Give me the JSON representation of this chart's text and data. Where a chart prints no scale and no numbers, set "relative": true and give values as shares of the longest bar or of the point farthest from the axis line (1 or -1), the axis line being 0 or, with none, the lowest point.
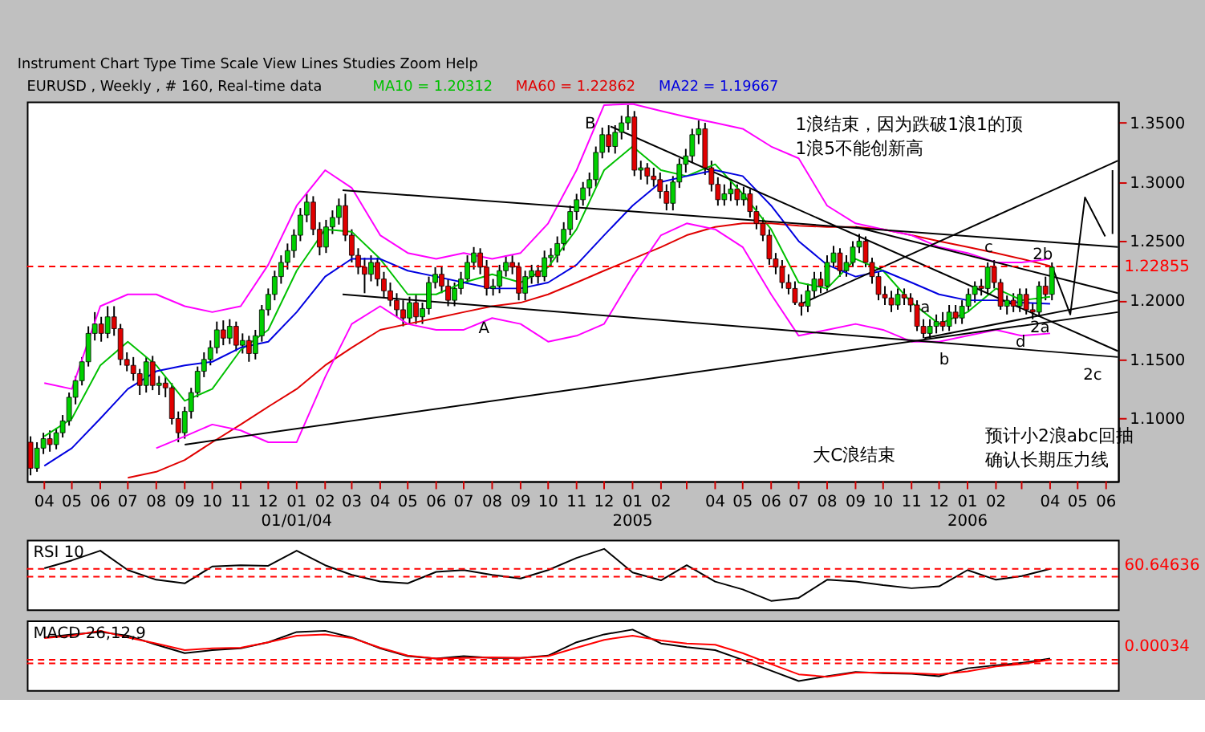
{
  "chart_data": [
    {
      "type": "candlestick",
      "title": "EURUSD , Weekly , # 160, Real-time data",
      "legend": "top",
      "x": [
        "2003-03-17",
        "2003-03-24",
        "2003-03-31",
        "2003-04-07",
        "2003-04-14",
        "2003-04-21",
        "2003-04-28",
        "2003-05-05",
        "2003-05-12",
        "2003-05-19",
        "2003-05-26",
        "2003-06-02",
        "2003-06-09",
        "2003-06-16",
        "2003-06-23",
        "2003-06-30",
        "2003-07-07",
        "2003-07-14",
        "2003-07-21",
        "2003-07-28",
        "2003-08-04",
        "2003-08-11",
        "2003-08-18",
        "2003-08-25",
        "2003-09-01",
        "2003-09-08",
        "2003-09-15",
        "2003-09-22",
        "2003-09-29",
        "2003-10-06",
        "2003-10-13",
        "2003-10-20",
        "2003-10-27",
        "2003-11-03",
        "2003-11-10",
        "2003-11-17",
        "2003-11-24",
        "2003-12-01",
        "2003-12-08",
        "2003-12-15",
        "2003-12-22",
        "2003-12-29",
        "2004-01-05",
        "2004-01-12",
        "2004-01-19",
        "2004-01-26",
        "2004-02-02",
        "2004-02-09",
        "2004-02-16",
        "2004-02-23",
        "2004-03-01",
        "2004-03-08",
        "2004-03-15",
        "2004-03-22",
        "2004-03-29",
        "2004-04-05",
        "2004-04-12",
        "2004-04-19",
        "2004-04-26",
        "2004-05-03",
        "2004-05-10",
        "2004-05-17",
        "2004-05-24",
        "2004-05-31",
        "2004-06-07",
        "2004-06-14",
        "2004-06-21",
        "2004-06-28",
        "2004-07-05",
        "2004-07-12",
        "2004-07-19",
        "2004-07-26",
        "2004-08-02",
        "2004-08-09",
        "2004-08-16",
        "2004-08-23",
        "2004-08-30",
        "2004-09-06",
        "2004-09-13",
        "2004-09-20",
        "2004-09-27",
        "2004-10-04",
        "2004-10-11",
        "2004-10-18",
        "2004-10-25",
        "2004-11-01",
        "2004-11-08",
        "2004-11-15",
        "2004-11-22",
        "2004-11-29",
        "2004-12-06",
        "2004-12-13",
        "2004-12-20",
        "2004-12-27",
        "2005-01-03",
        "2005-01-10",
        "2005-01-17",
        "2005-01-24",
        "2005-01-31",
        "2005-02-07",
        "2005-02-14",
        "2005-02-21",
        "2005-02-28",
        "2005-03-07",
        "2005-03-14",
        "2005-03-21",
        "2005-03-28",
        "2005-04-04",
        "2005-04-11",
        "2005-04-18",
        "2005-04-25",
        "2005-05-02",
        "2005-05-09",
        "2005-05-16",
        "2005-05-23",
        "2005-05-30",
        "2005-06-06",
        "2005-06-13",
        "2005-06-20",
        "2005-06-27",
        "2005-07-04",
        "2005-07-11",
        "2005-07-18",
        "2005-07-25",
        "2005-08-01",
        "2005-08-08",
        "2005-08-15",
        "2005-08-22",
        "2005-08-29",
        "2005-09-05",
        "2005-09-12",
        "2005-09-19",
        "2005-09-26",
        "2005-10-03",
        "2005-10-10",
        "2005-10-17",
        "2005-10-24",
        "2005-10-31",
        "2005-11-07",
        "2005-11-14",
        "2005-11-21",
        "2005-11-28",
        "2005-12-05",
        "2005-12-12",
        "2005-12-19",
        "2005-12-26",
        "2006-01-02",
        "2006-01-09",
        "2006-01-16",
        "2006-01-23",
        "2006-01-30",
        "2006-02-06",
        "2006-02-13",
        "2006-02-20",
        "2006-02-27",
        "2006-03-06",
        "2006-03-13",
        "2006-03-20",
        "2006-03-27",
        "2006-04-03"
      ],
      "ohlc": [
        [
          1.08,
          1.085,
          1.052,
          1.058
        ],
        [
          1.058,
          1.08,
          1.055,
          1.075
        ],
        [
          1.075,
          1.088,
          1.07,
          1.083
        ],
        [
          1.083,
          1.09,
          1.072,
          1.078
        ],
        [
          1.078,
          1.092,
          1.074,
          1.088
        ],
        [
          1.088,
          1.103,
          1.084,
          1.098
        ],
        [
          1.098,
          1.122,
          1.094,
          1.118
        ],
        [
          1.118,
          1.136,
          1.112,
          1.132
        ],
        [
          1.132,
          1.152,
          1.128,
          1.148
        ],
        [
          1.148,
          1.178,
          1.144,
          1.172
        ],
        [
          1.172,
          1.19,
          1.166,
          1.18
        ],
        [
          1.18,
          1.186,
          1.165,
          1.172
        ],
        [
          1.172,
          1.195,
          1.168,
          1.186
        ],
        [
          1.186,
          1.195,
          1.17,
          1.176
        ],
        [
          1.176,
          1.18,
          1.145,
          1.15
        ],
        [
          1.15,
          1.156,
          1.14,
          1.145
        ],
        [
          1.145,
          1.152,
          1.132,
          1.138
        ],
        [
          1.138,
          1.142,
          1.12,
          1.128
        ],
        [
          1.128,
          1.152,
          1.122,
          1.148
        ],
        [
          1.148,
          1.153,
          1.124,
          1.128
        ],
        [
          1.128,
          1.136,
          1.12,
          1.13
        ],
        [
          1.13,
          1.135,
          1.118,
          1.126
        ],
        [
          1.126,
          1.13,
          1.095,
          1.1
        ],
        [
          1.1,
          1.106,
          1.08,
          1.088
        ],
        [
          1.088,
          1.11,
          1.083,
          1.106
        ],
        [
          1.106,
          1.126,
          1.1,
          1.122
        ],
        [
          1.122,
          1.144,
          1.118,
          1.14
        ],
        [
          1.14,
          1.156,
          1.135,
          1.15
        ],
        [
          1.15,
          1.166,
          1.145,
          1.16
        ],
        [
          1.16,
          1.182,
          1.155,
          1.175
        ],
        [
          1.175,
          1.183,
          1.162,
          1.168
        ],
        [
          1.168,
          1.184,
          1.163,
          1.178
        ],
        [
          1.178,
          1.182,
          1.157,
          1.162
        ],
        [
          1.162,
          1.172,
          1.155,
          1.166
        ],
        [
          1.166,
          1.17,
          1.148,
          1.155
        ],
        [
          1.155,
          1.175,
          1.15,
          1.17
        ],
        [
          1.17,
          1.196,
          1.165,
          1.192
        ],
        [
          1.192,
          1.21,
          1.187,
          1.205
        ],
        [
          1.205,
          1.225,
          1.2,
          1.22
        ],
        [
          1.22,
          1.238,
          1.214,
          1.232
        ],
        [
          1.232,
          1.248,
          1.226,
          1.242
        ],
        [
          1.242,
          1.26,
          1.236,
          1.255
        ],
        [
          1.255,
          1.278,
          1.25,
          1.272
        ],
        [
          1.272,
          1.29,
          1.266,
          1.283
        ],
        [
          1.283,
          1.288,
          1.255,
          1.26
        ],
        [
          1.26,
          1.266,
          1.238,
          1.245
        ],
        [
          1.245,
          1.268,
          1.24,
          1.262
        ],
        [
          1.262,
          1.276,
          1.256,
          1.27
        ],
        [
          1.27,
          1.286,
          1.264,
          1.28
        ],
        [
          1.28,
          1.29,
          1.25,
          1.255
        ],
        [
          1.255,
          1.26,
          1.232,
          1.238
        ],
        [
          1.238,
          1.244,
          1.222,
          1.228
        ],
        [
          1.228,
          1.236,
          1.206,
          1.222
        ],
        [
          1.222,
          1.238,
          1.216,
          1.232
        ],
        [
          1.232,
          1.236,
          1.212,
          1.218
        ],
        [
          1.218,
          1.224,
          1.202,
          1.208
        ],
        [
          1.208,
          1.215,
          1.195,
          1.2
        ],
        [
          1.2,
          1.206,
          1.186,
          1.192
        ],
        [
          1.192,
          1.2,
          1.178,
          1.185
        ],
        [
          1.185,
          1.203,
          1.18,
          1.198
        ],
        [
          1.198,
          1.205,
          1.18,
          1.186
        ],
        [
          1.186,
          1.198,
          1.18,
          1.193
        ],
        [
          1.193,
          1.22,
          1.188,
          1.215
        ],
        [
          1.215,
          1.228,
          1.21,
          1.222
        ],
        [
          1.222,
          1.228,
          1.206,
          1.212
        ],
        [
          1.212,
          1.218,
          1.195,
          1.2
        ],
        [
          1.2,
          1.215,
          1.195,
          1.21
        ],
        [
          1.21,
          1.224,
          1.205,
          1.218
        ],
        [
          1.218,
          1.238,
          1.214,
          1.232
        ],
        [
          1.232,
          1.245,
          1.226,
          1.24
        ],
        [
          1.24,
          1.244,
          1.222,
          1.228
        ],
        [
          1.228,
          1.234,
          1.204,
          1.21
        ],
        [
          1.21,
          1.218,
          1.204,
          1.212
        ],
        [
          1.212,
          1.23,
          1.206,
          1.225
        ],
        [
          1.225,
          1.238,
          1.22,
          1.232
        ],
        [
          1.232,
          1.238,
          1.222,
          1.228
        ],
        [
          1.228,
          1.232,
          1.2,
          1.206
        ],
        [
          1.206,
          1.225,
          1.2,
          1.22
        ],
        [
          1.22,
          1.23,
          1.214,
          1.225
        ],
        [
          1.225,
          1.23,
          1.214,
          1.22
        ],
        [
          1.22,
          1.242,
          1.216,
          1.236
        ],
        [
          1.236,
          1.244,
          1.228,
          1.238
        ],
        [
          1.238,
          1.254,
          1.232,
          1.248
        ],
        [
          1.248,
          1.266,
          1.242,
          1.26
        ],
        [
          1.26,
          1.28,
          1.255,
          1.275
        ],
        [
          1.275,
          1.29,
          1.268,
          1.285
        ],
        [
          1.285,
          1.3,
          1.28,
          1.295
        ],
        [
          1.295,
          1.308,
          1.288,
          1.302
        ],
        [
          1.302,
          1.33,
          1.296,
          1.325
        ],
        [
          1.325,
          1.346,
          1.32,
          1.34
        ],
        [
          1.34,
          1.348,
          1.325,
          1.33
        ],
        [
          1.33,
          1.348,
          1.324,
          1.342
        ],
        [
          1.342,
          1.356,
          1.336,
          1.35
        ],
        [
          1.35,
          1.365,
          1.344,
          1.355
        ],
        [
          1.355,
          1.36,
          1.305,
          1.31
        ],
        [
          1.31,
          1.318,
          1.302,
          1.312
        ],
        [
          1.312,
          1.316,
          1.298,
          1.305
        ],
        [
          1.305,
          1.312,
          1.296,
          1.302
        ],
        [
          1.302,
          1.308,
          1.286,
          1.292
        ],
        [
          1.292,
          1.298,
          1.276,
          1.282
        ],
        [
          1.282,
          1.305,
          1.276,
          1.3
        ],
        [
          1.3,
          1.32,
          1.295,
          1.315
        ],
        [
          1.315,
          1.328,
          1.308,
          1.322
        ],
        [
          1.322,
          1.345,
          1.316,
          1.34
        ],
        [
          1.34,
          1.352,
          1.332,
          1.345
        ],
        [
          1.345,
          1.35,
          1.306,
          1.312
        ],
        [
          1.312,
          1.318,
          1.292,
          1.298
        ],
        [
          1.298,
          1.304,
          1.28,
          1.285
        ],
        [
          1.285,
          1.298,
          1.28,
          1.29
        ],
        [
          1.29,
          1.302,
          1.284,
          1.294
        ],
        [
          1.294,
          1.298,
          1.28,
          1.285
        ],
        [
          1.285,
          1.296,
          1.28,
          1.29
        ],
        [
          1.29,
          1.294,
          1.27,
          1.275
        ],
        [
          1.275,
          1.28,
          1.26,
          1.265
        ],
        [
          1.265,
          1.27,
          1.25,
          1.255
        ],
        [
          1.255,
          1.26,
          1.23,
          1.235
        ],
        [
          1.235,
          1.24,
          1.222,
          1.228
        ],
        [
          1.228,
          1.234,
          1.21,
          1.215
        ],
        [
          1.215,
          1.222,
          1.205,
          1.21
        ],
        [
          1.21,
          1.216,
          1.196,
          1.198
        ],
        [
          1.198,
          1.205,
          1.187,
          1.195
        ],
        [
          1.195,
          1.214,
          1.19,
          1.208
        ],
        [
          1.208,
          1.224,
          1.202,
          1.218
        ],
        [
          1.218,
          1.224,
          1.206,
          1.212
        ],
        [
          1.212,
          1.238,
          1.208,
          1.232
        ],
        [
          1.232,
          1.246,
          1.228,
          1.24
        ],
        [
          1.24,
          1.244,
          1.22,
          1.225
        ],
        [
          1.225,
          1.238,
          1.22,
          1.232
        ],
        [
          1.232,
          1.25,
          1.228,
          1.245
        ],
        [
          1.245,
          1.256,
          1.24,
          1.25
        ],
        [
          1.25,
          1.254,
          1.228,
          1.232
        ],
        [
          1.232,
          1.236,
          1.214,
          1.22
        ],
        [
          1.22,
          1.224,
          1.2,
          1.205
        ],
        [
          1.205,
          1.212,
          1.196,
          1.202
        ],
        [
          1.202,
          1.208,
          1.19,
          1.196
        ],
        [
          1.196,
          1.21,
          1.192,
          1.205
        ],
        [
          1.205,
          1.21,
          1.196,
          1.202
        ],
        [
          1.202,
          1.206,
          1.19,
          1.196
        ],
        [
          1.196,
          1.2,
          1.174,
          1.178
        ],
        [
          1.178,
          1.184,
          1.168,
          1.172
        ],
        [
          1.172,
          1.184,
          1.168,
          1.178
        ],
        [
          1.178,
          1.188,
          1.172,
          1.182
        ],
        [
          1.182,
          1.19,
          1.174,
          1.178
        ],
        [
          1.178,
          1.196,
          1.174,
          1.19
        ],
        [
          1.19,
          1.196,
          1.18,
          1.185
        ],
        [
          1.185,
          1.2,
          1.18,
          1.195
        ],
        [
          1.195,
          1.21,
          1.19,
          1.205
        ],
        [
          1.205,
          1.216,
          1.198,
          1.212
        ],
        [
          1.212,
          1.218,
          1.204,
          1.21
        ],
        [
          1.21,
          1.232,
          1.205,
          1.228
        ],
        [
          1.228,
          1.234,
          1.21,
          1.215
        ],
        [
          1.215,
          1.218,
          1.192,
          1.195
        ],
        [
          1.195,
          1.204,
          1.188,
          1.2
        ],
        [
          1.2,
          1.206,
          1.19,
          1.195
        ],
        [
          1.195,
          1.21,
          1.19,
          1.205
        ],
        [
          1.205,
          1.21,
          1.188,
          1.192
        ],
        [
          1.192,
          1.198,
          1.184,
          1.19
        ],
        [
          1.19,
          1.216,
          1.186,
          1.212
        ],
        [
          1.212,
          1.22,
          1.2,
          1.205
        ],
        [
          1.205,
          1.232,
          1.2,
          1.228
        ]
      ],
      "series": [
        {
          "type": "line",
          "name": "MA10 = 1.20312",
          "color": "#00c000",
          "x": [
            "2003-04-01",
            "2003-05-01",
            "2003-06-01",
            "2003-07-01",
            "2003-08-01",
            "2003-09-01",
            "2003-10-01",
            "2003-11-01",
            "2003-12-01",
            "2004-01-01",
            "2004-02-01",
            "2004-03-01",
            "2004-04-01",
            "2004-05-01",
            "2004-06-01",
            "2004-07-01",
            "2004-08-01",
            "2004-09-01",
            "2004-10-01",
            "2004-11-01",
            "2004-12-01",
            "2005-01-01",
            "2005-02-01",
            "2005-03-01",
            "2005-04-01",
            "2005-05-01",
            "2005-06-01",
            "2005-07-01",
            "2005-08-01",
            "2005-09-01",
            "2005-10-01",
            "2005-11-01",
            "2005-12-01",
            "2006-01-01",
            "2006-02-01",
            "2006-03-01",
            "2006-04-01"
          ],
          "values": [
            1.085,
            1.1,
            1.145,
            1.165,
            1.145,
            1.115,
            1.125,
            1.158,
            1.175,
            1.225,
            1.26,
            1.258,
            1.235,
            1.205,
            1.205,
            1.215,
            1.222,
            1.215,
            1.228,
            1.26,
            1.31,
            1.33,
            1.31,
            1.305,
            1.315,
            1.29,
            1.26,
            1.215,
            1.21,
            1.235,
            1.225,
            1.198,
            1.18,
            1.19,
            1.21,
            1.2,
            1.203
          ]
        },
        {
          "type": "line",
          "name": "MA60 = 1.22862",
          "color": "#e00000",
          "x": [
            "2003-07-01",
            "2003-08-01",
            "2003-09-01",
            "2003-10-01",
            "2003-11-01",
            "2003-12-01",
            "2004-01-01",
            "2004-02-01",
            "2004-03-01",
            "2004-04-01",
            "2004-05-01",
            "2004-06-01",
            "2004-07-01",
            "2004-08-01",
            "2004-09-01",
            "2004-10-01",
            "2004-11-01",
            "2004-12-01",
            "2005-01-01",
            "2005-02-01",
            "2005-03-01",
            "2005-04-01",
            "2005-05-01",
            "2005-06-01",
            "2005-07-01",
            "2005-08-01",
            "2005-09-01",
            "2005-10-01",
            "2005-11-01",
            "2005-12-01",
            "2006-01-01",
            "2006-02-01",
            "2006-03-01",
            "2006-04-01"
          ],
          "values": [
            1.05,
            1.055,
            1.065,
            1.08,
            1.095,
            1.11,
            1.125,
            1.145,
            1.16,
            1.175,
            1.18,
            1.185,
            1.19,
            1.195,
            1.198,
            1.205,
            1.215,
            1.225,
            1.235,
            1.245,
            1.255,
            1.262,
            1.265,
            1.265,
            1.263,
            1.262,
            1.262,
            1.26,
            1.255,
            1.25,
            1.245,
            1.24,
            1.235,
            1.229
          ]
        },
        {
          "type": "line",
          "name": "MA22 = 1.19667",
          "color": "#0000e0",
          "x": [
            "2003-04-01",
            "2003-05-01",
            "2003-06-01",
            "2003-07-01",
            "2003-08-01",
            "2003-09-01",
            "2003-10-01",
            "2003-11-01",
            "2003-12-01",
            "2004-01-01",
            "2004-02-01",
            "2004-03-01",
            "2004-04-01",
            "2004-05-01",
            "2004-06-01",
            "2004-07-01",
            "2004-08-01",
            "2004-09-01",
            "2004-10-01",
            "2004-11-01",
            "2004-12-01",
            "2005-01-01",
            "2005-02-01",
            "2005-03-01",
            "2005-04-01",
            "2005-05-01",
            "2005-06-01",
            "2005-07-01",
            "2005-08-01",
            "2005-09-01",
            "2005-10-01",
            "2005-11-01",
            "2005-12-01",
            "2006-01-01",
            "2006-02-01",
            "2006-03-01",
            "2006-04-01"
          ],
          "values": [
            1.06,
            1.075,
            1.1,
            1.125,
            1.14,
            1.145,
            1.148,
            1.16,
            1.165,
            1.19,
            1.22,
            1.235,
            1.235,
            1.225,
            1.22,
            1.215,
            1.21,
            1.21,
            1.215,
            1.23,
            1.255,
            1.28,
            1.3,
            1.305,
            1.31,
            1.305,
            1.28,
            1.25,
            1.23,
            1.22,
            1.225,
            1.215,
            1.205,
            1.2,
            1.2,
            1.198,
            1.197
          ]
        },
        {
          "type": "line",
          "color": "#ff00ff",
          "x": [
            "2003-04-01",
            "2003-05-01",
            "2003-06-01",
            "2003-07-01",
            "2003-08-01",
            "2003-09-01",
            "2003-10-01",
            "2003-11-01",
            "2003-12-01",
            "2004-01-01",
            "2004-02-01",
            "2004-03-01",
            "2004-04-01",
            "2004-05-01",
            "2004-06-01",
            "2004-07-01",
            "2004-08-01",
            "2004-09-01",
            "2004-10-01",
            "2004-11-01",
            "2004-12-01",
            "2005-01-01",
            "2005-02-01",
            "2005-03-01",
            "2005-04-01",
            "2005-05-01",
            "2005-06-01",
            "2005-07-01",
            "2005-08-01",
            "2005-09-01",
            "2005-10-01",
            "2005-11-01",
            "2005-12-01",
            "2006-01-01",
            "2006-02-01",
            "2006-03-01",
            "2006-04-01"
          ],
          "values": [
            1.13,
            1.125,
            1.195,
            1.205,
            1.205,
            1.195,
            1.19,
            1.195,
            1.23,
            1.28,
            1.31,
            1.295,
            1.255,
            1.24,
            1.235,
            1.24,
            1.235,
            1.24,
            1.265,
            1.31,
            1.365,
            1.366,
            1.36,
            1.355,
            1.35,
            1.345,
            1.33,
            1.32,
            1.28,
            1.265,
            1.26,
            1.255,
            1.245,
            1.24,
            1.232,
            1.232,
            1.235
          ]
        },
        {
          "type": "line",
          "color": "#ff00ff",
          "x": [
            "2003-08-01",
            "2003-09-01",
            "2003-10-01",
            "2003-11-01",
            "2003-12-01",
            "2004-01-01",
            "2004-02-01",
            "2004-03-01",
            "2004-04-01",
            "2004-05-01",
            "2004-06-01",
            "2004-07-01",
            "2004-08-01",
            "2004-09-01",
            "2004-10-01",
            "2004-11-01",
            "2004-12-01",
            "2005-01-01",
            "2005-02-01",
            "2005-03-01",
            "2005-04-01",
            "2005-05-01",
            "2005-06-01",
            "2005-07-01",
            "2005-08-01",
            "2005-09-01",
            "2005-10-01",
            "2005-11-01",
            "2005-12-01",
            "2006-01-01",
            "2006-02-01",
            "2006-03-01",
            "2006-04-01"
          ],
          "values": [
            1.075,
            1.085,
            1.095,
            1.09,
            1.08,
            1.08,
            1.135,
            1.18,
            1.195,
            1.18,
            1.175,
            1.175,
            1.185,
            1.18,
            1.165,
            1.17,
            1.18,
            1.22,
            1.255,
            1.265,
            1.26,
            1.245,
            1.205,
            1.17,
            1.175,
            1.18,
            1.175,
            1.165,
            1.165,
            1.17,
            1.175,
            1.17,
            1.172
          ]
        },
        {
          "type": "line",
          "color": "#000000",
          "x": [
            "2004-12-08",
            "2006-06-14"
          ],
          "values": [
            1.347,
            1.157
          ]
        },
        {
          "type": "line",
          "color": "#000000",
          "x": [
            "2004-02-20",
            "2006-06-14"
          ],
          "values": [
            1.293,
            1.245
          ]
        },
        {
          "type": "line",
          "color": "#000000",
          "x": [
            "2004-02-20",
            "2006-06-14"
          ],
          "values": [
            1.205,
            1.152
          ]
        },
        {
          "type": "line",
          "color": "#000000",
          "x": [
            "2003-09-01",
            "2006-06-14"
          ],
          "values": [
            1.078,
            1.19
          ]
        },
        {
          "type": "line",
          "color": "#000000",
          "x": [
            "2005-07-01",
            "2006-06-14"
          ],
          "values": [
            1.196,
            1.318
          ]
        },
        {
          "type": "line",
          "color": "#000000",
          "x": [
            "2005-11-15",
            "2006-06-14"
          ],
          "values": [
            1.168,
            1.2
          ]
        },
        {
          "type": "line",
          "color": "#000000",
          "x": [
            "2005-09-01",
            "2006-06-14"
          ],
          "values": [
            1.262,
            1.206
          ]
        },
        {
          "type": "line",
          "color": "#000000",
          "x": [
            "2006-04-03",
            "2006-04-23",
            "2006-05-09",
            "2006-05-31"
          ],
          "values": [
            1.229,
            1.188,
            1.287,
            1.254
          ]
        },
        {
          "type": "line",
          "color": "#000000",
          "x": [
            "2006-06-08",
            "2006-06-08"
          ],
          "values": [
            1.256,
            1.31
          ]
        }
      ],
      "xlim": [
        "2003-03-13",
        "2006-06-14"
      ],
      "ylim": [
        1.047,
        1.368
      ],
      "xticks": [
        {
          "value": "2003-04-01",
          "label": "04"
        },
        {
          "value": "2003-05-01",
          "label": "05"
        },
        {
          "value": "2003-06-01",
          "label": "06"
        },
        {
          "value": "2003-07-01",
          "label": "07"
        },
        {
          "value": "2003-08-01",
          "label": "08"
        },
        {
          "value": "2003-09-01",
          "label": "09"
        },
        {
          "value": "2003-10-01",
          "label": "10"
        },
        {
          "value": "2003-11-01",
          "label": "11"
        },
        {
          "value": "2003-12-01",
          "label": "12"
        },
        {
          "value": "2004-01-01",
          "label": "01\n01/01/04"
        },
        {
          "value": "2004-02-01",
          "label": "02"
        },
        {
          "value": "2004-03-01",
          "label": "03"
        },
        {
          "value": "2004-04-01",
          "label": "04"
        },
        {
          "value": "2004-05-01",
          "label": "05"
        },
        {
          "value": "2004-06-01",
          "label": "06"
        },
        {
          "value": "2004-07-01",
          "label": "07"
        },
        {
          "value": "2004-08-01",
          "label": "08"
        },
        {
          "value": "2004-09-01",
          "label": "09"
        },
        {
          "value": "2004-10-01",
          "label": "10"
        },
        {
          "value": "2004-11-01",
          "label": "11"
        },
        {
          "value": "2004-12-01",
          "label": "12"
        },
        {
          "value": "2005-01-01",
          "label": "01\n2005"
        },
        {
          "value": "2005-02-01",
          "label": "02"
        },
        {
          "value": "2005-03-01",
          "label": null
        },
        {
          "value": "2005-04-01",
          "label": "04"
        },
        {
          "value": "2005-05-01",
          "label": "05"
        },
        {
          "value": "2005-06-01",
          "label": "06"
        },
        {
          "value": "2005-07-01",
          "label": "07"
        },
        {
          "value": "2005-08-01",
          "label": "08"
        },
        {
          "value": "2005-09-01",
          "label": "09"
        },
        {
          "value": "2005-10-01",
          "label": "10"
        },
        {
          "value": "2005-11-01",
          "label": "11"
        },
        {
          "value": "2005-12-01",
          "label": "12"
        },
        {
          "value": "2006-01-01",
          "label": "01\n2006"
        },
        {
          "value": "2006-02-01",
          "label": "02"
        },
        {
          "value": "2006-03-01",
          "label": null
        },
        {
          "value": "2006-04-01",
          "label": "04"
        },
        {
          "value": "2006-05-01",
          "label": "05"
        },
        {
          "value": "2006-06-01",
          "label": "06"
        }
      ],
      "yticks": [
        {
          "value": 1.1,
          "label": "1.1000"
        },
        {
          "value": 1.15,
          "label": "1.1500"
        },
        {
          "value": 1.2,
          "label": "1.2000"
        },
        {
          "value": 1.25,
          "label": "1.2500"
        },
        {
          "value": 1.3,
          "label": "1.3000"
        },
        {
          "value": 1.35,
          "label": "1.3500"
        }
      ],
      "ref_lines": [
        {
          "axis": "y",
          "value": 1.22855,
          "label": "1.22855",
          "color": "#ff0000",
          "line_style": "dashed"
        }
      ],
      "annotations": [
        "Instrument   Chart Type   Time Scale   View   Lines   Studies   Zoom   Help",
        {
          "text": "B",
          "x": "2004-11-16",
          "y": 1.349
        },
        {
          "text": "A",
          "x": "2004-07-23",
          "y": 1.176
        },
        {
          "text": "a",
          "x": "2005-11-16",
          "y": 1.194
        },
        "b",
        {
          "text": "c",
          "x": "2006-01-24",
          "y": 1.245
        },
        {
          "text": "d",
          "x": "2006-02-28",
          "y": 1.165
        },
        {
          "text": "2a",
          "x": "2006-03-21",
          "y": 1.177
        },
        {
          "text": "2b",
          "x": "2006-03-24",
          "y": 1.239
        },
        "2c",
        "1浪结束，因为跌破1浪1的顶",
        "1浪5不能创新高",
        "大C浪结束",
        "预计小2浪abc回抽",
        "确认长期压力线"
      ]
    },
    {
      "type": "line",
      "title": "RSI 10",
      "relative": true,
      "tick_labels": false,
      "xlim": [
        "2003-03-13",
        "2006-06-14"
      ],
      "x": [
        "2003-04-01",
        "2003-05-01",
        "2003-06-01",
        "2003-07-01",
        "2003-08-01",
        "2003-09-01",
        "2003-10-01",
        "2003-11-01",
        "2003-12-01",
        "2004-01-01",
        "2004-02-01",
        "2004-03-01",
        "2004-04-01",
        "2004-05-01",
        "2004-06-01",
        "2004-07-01",
        "2004-08-01",
        "2004-09-01",
        "2004-10-01",
        "2004-11-01",
        "2004-12-01",
        "2005-01-01",
        "2005-02-01",
        "2005-03-01",
        "2005-04-01",
        "2005-05-01",
        "2005-06-01",
        "2005-07-01",
        "2005-08-01",
        "2005-09-01",
        "2005-10-01",
        "2005-11-01",
        "2005-12-01",
        "2006-01-01",
        "2006-02-01",
        "2006-03-01",
        "2006-04-01"
      ],
      "series": [
        {
          "color": "#000000",
          "values": [
            0.68,
            0.81,
            0.97,
            0.65,
            0.49,
            0.43,
            0.71,
            0.73,
            0.72,
            0.97,
            0.73,
            0.57,
            0.46,
            0.43,
            0.62,
            0.65,
            0.57,
            0.51,
            0.65,
            0.85,
            1.0,
            0.61,
            0.48,
            0.73,
            0.46,
            0.33,
            0.14,
            0.19,
            0.49,
            0.46,
            0.4,
            0.35,
            0.38,
            0.65,
            0.49,
            0.55,
            0.67
          ]
        }
      ],
      "annotations": [
        "60.64636"
      ],
      "ref_lines": [
        {
          "axis": "y",
          "value": 0.67,
          "color": "#ff0000",
          "line_style": "dashed"
        },
        {
          "axis": "y",
          "value": 0.54,
          "color": "#ff0000",
          "line_style": "dashed"
        }
      ]
    },
    {
      "type": "line",
      "title": "MACD 26,12,9",
      "relative": true,
      "tick_labels": false,
      "xlim": [
        "2003-03-13",
        "2006-06-14"
      ],
      "x": [
        "2003-04-01",
        "2003-05-01",
        "2003-06-01",
        "2003-07-01",
        "2003-08-01",
        "2003-09-01",
        "2003-10-01",
        "2003-11-01",
        "2003-12-01",
        "2004-01-01",
        "2004-02-01",
        "2004-03-01",
        "2004-04-01",
        "2004-05-01",
        "2004-06-01",
        "2004-07-01",
        "2004-08-01",
        "2004-09-01",
        "2004-10-01",
        "2004-11-01",
        "2004-12-01",
        "2005-01-01",
        "2005-02-01",
        "2005-03-01",
        "2005-04-01",
        "2005-05-01",
        "2005-06-01",
        "2005-07-01",
        "2005-08-01",
        "2005-09-01",
        "2005-10-01",
        "2005-11-01",
        "2005-12-01",
        "2006-01-01",
        "2006-02-01",
        "2006-03-01",
        "2006-04-01"
      ],
      "series": [
        {
          "color": "#000000",
          "values": [
            0.87,
            0.92,
            0.96,
            0.9,
            0.75,
            0.61,
            0.66,
            0.69,
            0.79,
            0.96,
            0.98,
            0.87,
            0.69,
            0.56,
            0.52,
            0.56,
            0.53,
            0.53,
            0.57,
            0.79,
            0.92,
            1.0,
            0.77,
            0.71,
            0.66,
            0.5,
            0.32,
            0.15,
            0.23,
            0.3,
            0.28,
            0.27,
            0.23,
            0.36,
            0.41,
            0.45,
            0.52
          ]
        },
        {
          "color": "#ff0000",
          "values": [
            0.86,
            0.9,
            0.98,
            0.87,
            0.77,
            0.66,
            0.69,
            0.7,
            0.79,
            0.9,
            0.92,
            0.86,
            0.7,
            0.57,
            0.52,
            0.53,
            0.54,
            0.53,
            0.56,
            0.7,
            0.83,
            0.9,
            0.82,
            0.77,
            0.75,
            0.61,
            0.43,
            0.26,
            0.22,
            0.29,
            0.29,
            0.28,
            0.26,
            0.31,
            0.39,
            0.43,
            0.5
          ]
        }
      ],
      "annotations": [
        "0.00034"
      ],
      "ref_lines": [
        {
          "axis": "y",
          "value": 0.5,
          "color": "#ff0000",
          "line_style": "dashed"
        },
        {
          "axis": "y",
          "value": 0.44,
          "color": "#ff0000",
          "line_style": "dashed"
        }
      ]
    }
  ]
}
